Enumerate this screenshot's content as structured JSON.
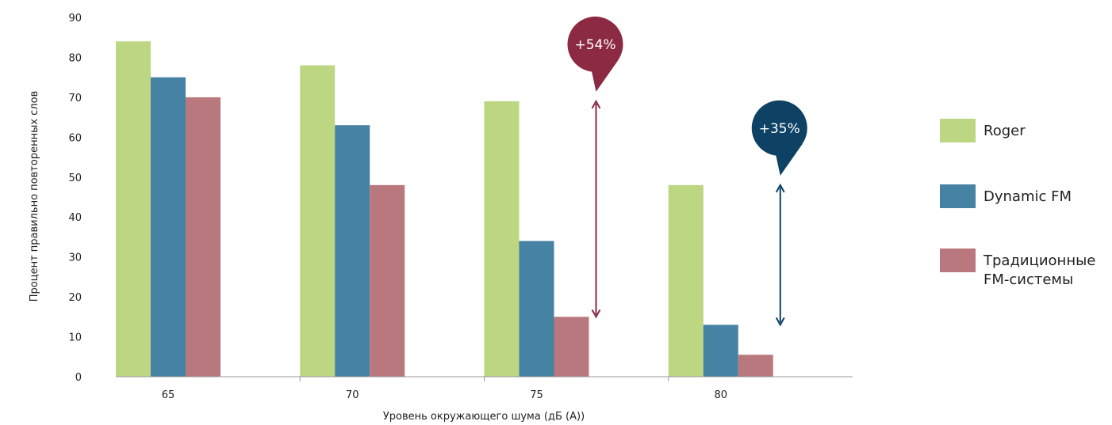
{
  "chart_data": {
    "type": "bar",
    "title": "",
    "xlabel": "Уровень окружающего шума (дБ (А))",
    "ylabel": "Процент правильно повторенных слов",
    "categories": [
      "65",
      "70",
      "75",
      "80"
    ],
    "ylim": [
      0,
      90
    ],
    "yticks": [
      "0",
      "10",
      "20",
      "30",
      "40",
      "50",
      "60",
      "70",
      "80",
      "90"
    ],
    "grid": false,
    "legend_position": "right",
    "series": [
      {
        "name": "Roger",
        "color": "#bdd681",
        "values": [
          84,
          78,
          69,
          48
        ]
      },
      {
        "name": "Dynamic FM",
        "color": "#4682a3",
        "values": [
          75,
          63,
          34,
          13
        ]
      },
      {
        "name": "Традиционные\nFM-системы",
        "color": "#b9787e",
        "values": [
          70,
          48,
          15,
          5.5
        ]
      }
    ],
    "annotations": [
      {
        "text": "+54%",
        "category": "75",
        "from": 15,
        "to": 69,
        "color": "#8b2a42"
      },
      {
        "text": "+35%",
        "category": "80",
        "from": 13,
        "to": 48,
        "color": "#0e4265"
      }
    ]
  }
}
